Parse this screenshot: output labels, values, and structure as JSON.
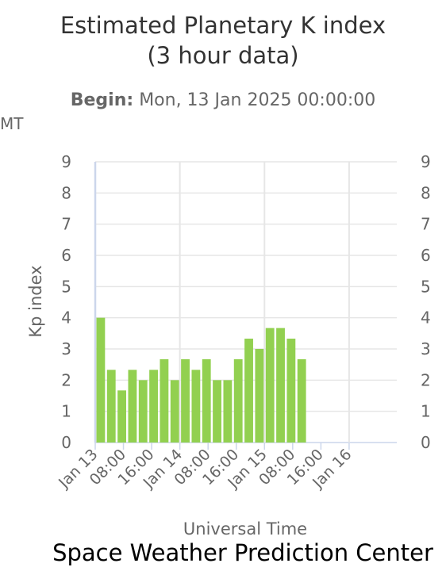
{
  "title_line1": "Estimated Planetary K index",
  "title_line2": "(3 hour data)",
  "begin_label": "Begin:",
  "begin_value": "Mon, 13 Jan 2025 00:00:00",
  "cutoff_text": "MT",
  "credit": "Space Weather Prediction Center",
  "colors": {
    "bar": "#92d050",
    "grid": "#e6e6e6",
    "axis": "#ccd6eb"
  },
  "chart_data": {
    "type": "bar",
    "xlabel": "Universal Time",
    "ylabel": "Kp index",
    "ylim": [
      0,
      9
    ],
    "y_ticks": [
      "0",
      "1",
      "2",
      "3",
      "4",
      "5",
      "6",
      "7",
      "8",
      "9"
    ],
    "x_ticks": [
      "Jan 13",
      "08:00",
      "16:00",
      "Jan 14",
      "08:00",
      "16:00",
      "Jan 15",
      "08:00",
      "16:00",
      "Jan 16"
    ],
    "interval_hours": 3,
    "values": [
      4,
      2.33,
      1.67,
      2.33,
      2,
      2.33,
      2.67,
      2,
      2.67,
      2.33,
      2.67,
      2,
      2,
      2.67,
      3.33,
      3,
      3.67,
      3.67,
      3.33,
      2.67
    ]
  }
}
